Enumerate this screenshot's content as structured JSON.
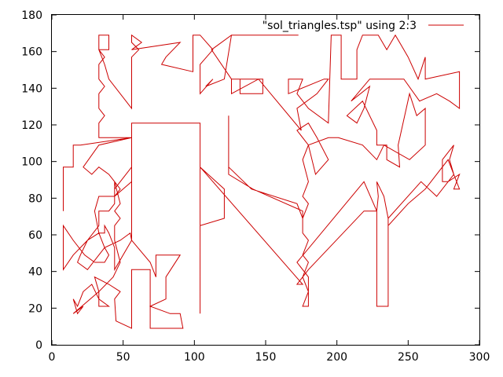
{
  "chart_data": {
    "type": "line",
    "title": "",
    "xlabel": "",
    "ylabel": "",
    "xlim": [
      0,
      300
    ],
    "ylim": [
      0,
      180
    ],
    "xticks": [
      0,
      50,
      100,
      150,
      200,
      250,
      300
    ],
    "yticks": [
      0,
      20,
      40,
      60,
      80,
      100,
      120,
      140,
      160,
      180
    ],
    "grid": false,
    "legend_position": "top-right",
    "colors": {
      "series": "#cc0000",
      "axes": "#000000",
      "background": "#ffffff"
    },
    "series": [
      {
        "name": "\"sol_triangles.tsp\" using 2:3",
        "points": [
          [
            8,
            73
          ],
          [
            8,
            97
          ],
          [
            15,
            97
          ],
          [
            15,
            109
          ],
          [
            20,
            109
          ],
          [
            56,
            113
          ],
          [
            33,
            113
          ],
          [
            33,
            121
          ],
          [
            37,
            125
          ],
          [
            33,
            129
          ],
          [
            33,
            137
          ],
          [
            37,
            141
          ],
          [
            33,
            145
          ],
          [
            33,
            153
          ],
          [
            37,
            157
          ],
          [
            33,
            161
          ],
          [
            33,
            169
          ],
          [
            40,
            169
          ],
          [
            40,
            161
          ],
          [
            33,
            161
          ],
          [
            37,
            153
          ],
          [
            40,
            145
          ],
          [
            56,
            129
          ],
          [
            56,
            157
          ],
          [
            61,
            161
          ],
          [
            56,
            165
          ],
          [
            56,
            169
          ],
          [
            63,
            165
          ],
          [
            56,
            161
          ],
          [
            90,
            165
          ],
          [
            80,
            157
          ],
          [
            77,
            153
          ],
          [
            99,
            149
          ],
          [
            99,
            169
          ],
          [
            104,
            169
          ],
          [
            113,
            161
          ],
          [
            104,
            153
          ],
          [
            104,
            137
          ],
          [
            113,
            145
          ],
          [
            108,
            141
          ],
          [
            121,
            145
          ],
          [
            126,
            169
          ],
          [
            173,
            169
          ],
          [
            126,
            169
          ],
          [
            112,
            161
          ],
          [
            126,
            145
          ],
          [
            132,
            145
          ],
          [
            132,
            137
          ],
          [
            148,
            137
          ],
          [
            148,
            145
          ],
          [
            126,
            145
          ],
          [
            126,
            137
          ],
          [
            145,
            145
          ],
          [
            175,
            117
          ],
          [
            172,
            129
          ],
          [
            186,
            137
          ],
          [
            194,
            145
          ],
          [
            191,
            145
          ],
          [
            166,
            137
          ],
          [
            166,
            145
          ],
          [
            176,
            145
          ],
          [
            172,
            137
          ],
          [
            180,
            129
          ],
          [
            194,
            121
          ],
          [
            196,
            169
          ],
          [
            203,
            169
          ],
          [
            203,
            145
          ],
          [
            214,
            145
          ],
          [
            214,
            161
          ],
          [
            218,
            169
          ],
          [
            229,
            169
          ],
          [
            235,
            161
          ],
          [
            241,
            169
          ],
          [
            250,
            157
          ],
          [
            257,
            145
          ],
          [
            262,
            157
          ],
          [
            262,
            145
          ],
          [
            286,
            149
          ],
          [
            286,
            129
          ],
          [
            279,
            133
          ],
          [
            270,
            137
          ],
          [
            258,
            133
          ],
          [
            247,
            145
          ],
          [
            223,
            145
          ],
          [
            210,
            133
          ],
          [
            223,
            141
          ],
          [
            219,
            129
          ],
          [
            214,
            121
          ],
          [
            207,
            125
          ],
          [
            218,
            133
          ],
          [
            228,
            117
          ],
          [
            228,
            109
          ],
          [
            235,
            109
          ],
          [
            235,
            101
          ],
          [
            244,
            97
          ],
          [
            243,
            109
          ],
          [
            251,
            137
          ],
          [
            256,
            125
          ],
          [
            262,
            129
          ],
          [
            262,
            109
          ],
          [
            251,
            101
          ],
          [
            233,
            109
          ],
          [
            228,
            101
          ],
          [
            218,
            109
          ],
          [
            201,
            113
          ],
          [
            194,
            113
          ],
          [
            180,
            109
          ],
          [
            185,
            93
          ],
          [
            194,
            101
          ],
          [
            186,
            113
          ],
          [
            180,
            121
          ],
          [
            172,
            117
          ],
          [
            180,
            109
          ],
          [
            176,
            101
          ],
          [
            180,
            89
          ],
          [
            176,
            81
          ],
          [
            180,
            77
          ],
          [
            176,
            69
          ],
          [
            172,
            77
          ],
          [
            140,
            85
          ],
          [
            124,
            97
          ],
          [
            124,
            125
          ],
          [
            124,
            93
          ],
          [
            141,
            85
          ],
          [
            176,
            73
          ],
          [
            176,
            61
          ],
          [
            180,
            57
          ],
          [
            176,
            49
          ],
          [
            180,
            45
          ],
          [
            176,
            37
          ],
          [
            180,
            29
          ],
          [
            176,
            21
          ],
          [
            180,
            21
          ],
          [
            180,
            37
          ],
          [
            172,
            45
          ],
          [
            219,
            89
          ],
          [
            228,
            73
          ],
          [
            229,
            81
          ],
          [
            228,
            89
          ],
          [
            233,
            81
          ],
          [
            236,
            69
          ],
          [
            259,
            89
          ],
          [
            270,
            81
          ],
          [
            282,
            93
          ],
          [
            279,
            101
          ],
          [
            282,
            109
          ],
          [
            274,
            101
          ],
          [
            274,
            89
          ],
          [
            278,
            89
          ],
          [
            286,
            93
          ],
          [
            282,
            85
          ],
          [
            286,
            85
          ],
          [
            278,
            101
          ],
          [
            262,
            85
          ],
          [
            250,
            77
          ],
          [
            236,
            65
          ],
          [
            236,
            69
          ],
          [
            236,
            21
          ],
          [
            228,
            21
          ],
          [
            228,
            73
          ],
          [
            219,
            73
          ],
          [
            180,
            41
          ],
          [
            172,
            33
          ],
          [
            176,
            33
          ],
          [
            104,
            97
          ],
          [
            121,
            85
          ],
          [
            121,
            77
          ],
          [
            121,
            69
          ],
          [
            104,
            65
          ],
          [
            104,
            17
          ],
          [
            104,
            121
          ],
          [
            56,
            121
          ],
          [
            56,
            57
          ],
          [
            69,
            45
          ],
          [
            73,
            37
          ],
          [
            73,
            49
          ],
          [
            90,
            49
          ],
          [
            80,
            37
          ],
          [
            80,
            25
          ],
          [
            69,
            21
          ],
          [
            83,
            17
          ],
          [
            90,
            17
          ],
          [
            92,
            9
          ],
          [
            69,
            9
          ],
          [
            69,
            41
          ],
          [
            56,
            41
          ],
          [
            56,
            9
          ],
          [
            45,
            13
          ],
          [
            44,
            25
          ],
          [
            48,
            29
          ],
          [
            40,
            33
          ],
          [
            30,
            37
          ],
          [
            33,
            29
          ],
          [
            33,
            21
          ],
          [
            40,
            21
          ],
          [
            33,
            25
          ],
          [
            28,
            33
          ],
          [
            22,
            29
          ],
          [
            18,
            21
          ],
          [
            15,
            25
          ],
          [
            18,
            17
          ],
          [
            22,
            21
          ],
          [
            15,
            17
          ],
          [
            33,
            29
          ],
          [
            43,
            37
          ],
          [
            48,
            45
          ],
          [
            44,
            57
          ],
          [
            44,
            65
          ],
          [
            48,
            69
          ],
          [
            44,
            73
          ],
          [
            48,
            77
          ],
          [
            44,
            89
          ],
          [
            44,
            81
          ],
          [
            40,
            81
          ],
          [
            33,
            81
          ],
          [
            30,
            73
          ],
          [
            33,
            61
          ],
          [
            25,
            57
          ],
          [
            20,
            49
          ],
          [
            18,
            45
          ],
          [
            25,
            41
          ],
          [
            33,
            49
          ],
          [
            37,
            53
          ],
          [
            48,
            57
          ],
          [
            55,
            61
          ],
          [
            56,
            57
          ],
          [
            44,
            41
          ],
          [
            44,
            53
          ],
          [
            40,
            61
          ],
          [
            37,
            65
          ],
          [
            37,
            61
          ],
          [
            33,
            61
          ],
          [
            37,
            53
          ],
          [
            40,
            49
          ],
          [
            37,
            45
          ],
          [
            30,
            45
          ],
          [
            23,
            49
          ],
          [
            15,
            57
          ],
          [
            8,
            65
          ],
          [
            8,
            41
          ],
          [
            15,
            49
          ],
          [
            25,
            57
          ],
          [
            33,
            65
          ],
          [
            33,
            69
          ],
          [
            33,
            73
          ],
          [
            40,
            73
          ],
          [
            44,
            77
          ],
          [
            44,
            85
          ],
          [
            48,
            89
          ],
          [
            56,
            97
          ],
          [
            56,
            89
          ],
          [
            44,
            81
          ],
          [
            48,
            85
          ],
          [
            44,
            89
          ],
          [
            40,
            93
          ],
          [
            33,
            97
          ],
          [
            28,
            93
          ],
          [
            22,
            97
          ],
          [
            33,
            109
          ],
          [
            56,
            113
          ]
        ]
      }
    ]
  }
}
